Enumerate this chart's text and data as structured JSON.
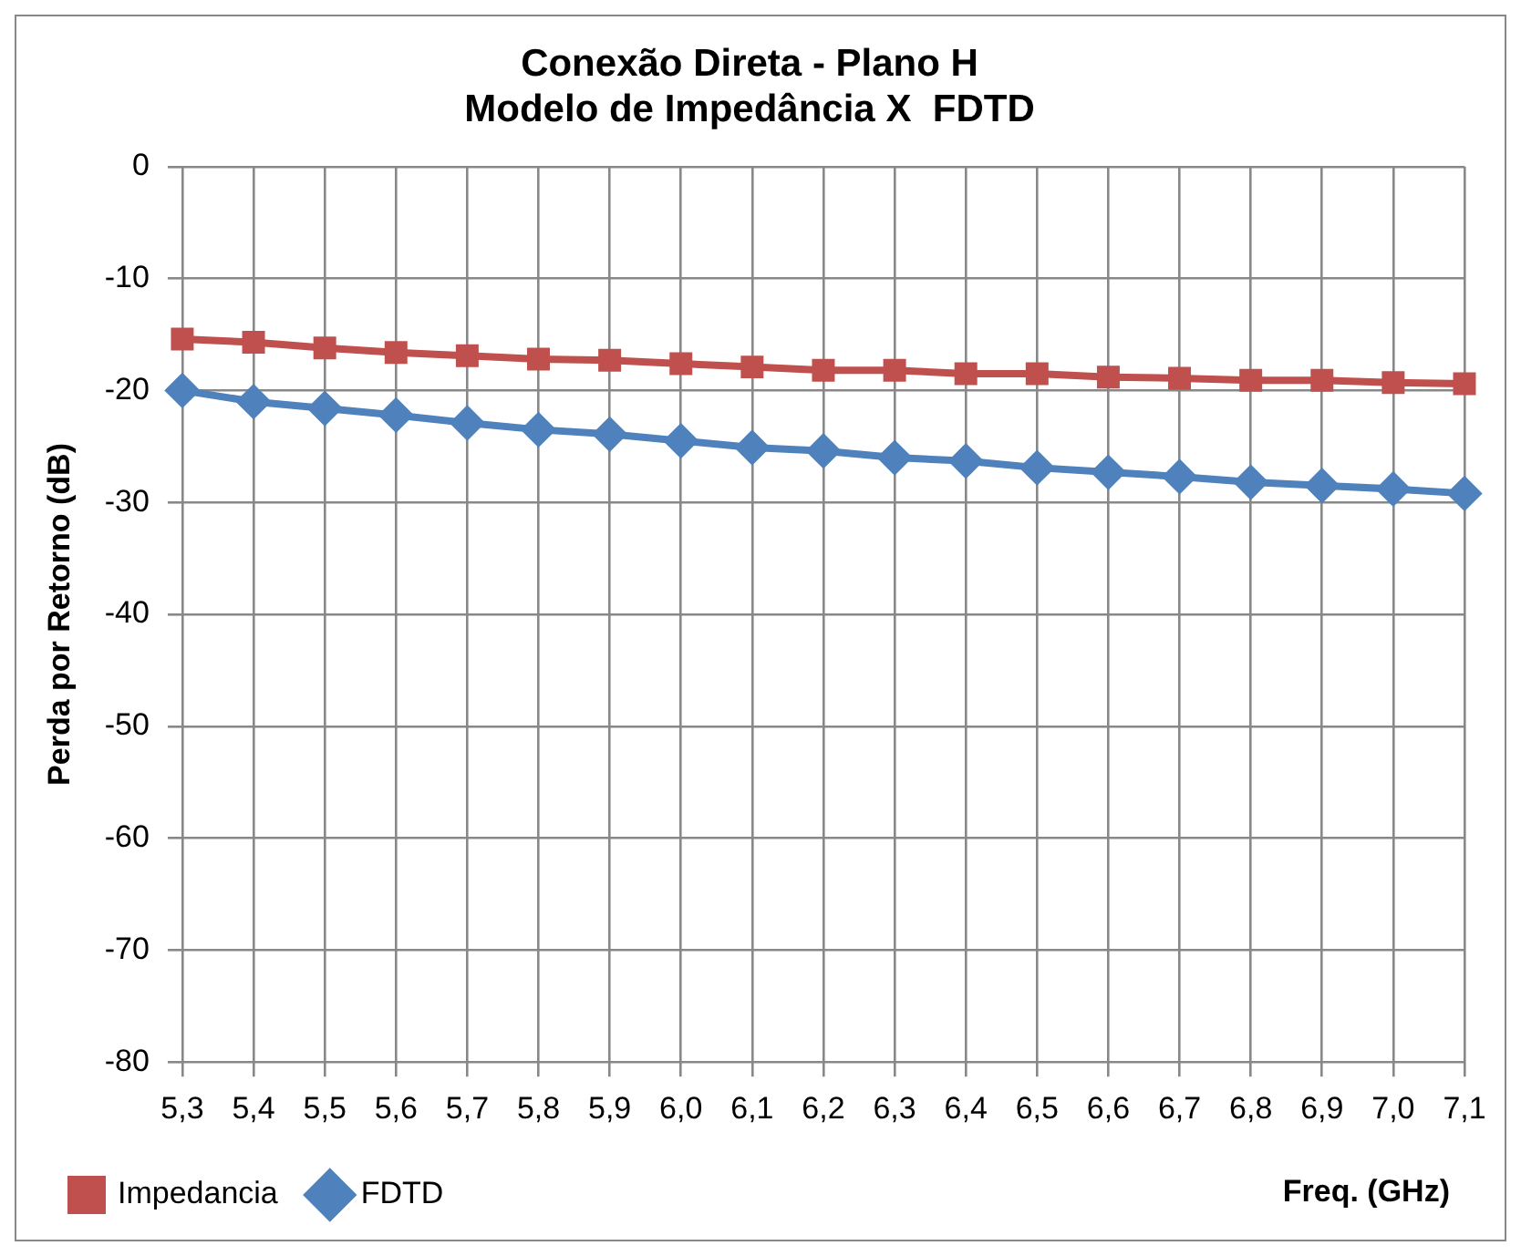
{
  "chart_data": {
    "type": "line",
    "title": "Conexão Direta - Plano H\nModelo de Impedância X  FDTD",
    "xlabel": "Freq. (GHz)",
    "ylabel": "Perda por Retorno (dB)",
    "categories": [
      "5,3",
      "5,4",
      "5,5",
      "5,6",
      "5,7",
      "5,8",
      "5,9",
      "6,0",
      "6,1",
      "6,2",
      "6,3",
      "6,4",
      "6,5",
      "6,6",
      "6,7",
      "6,8",
      "6,9",
      "7,0",
      "7,1"
    ],
    "series": [
      {
        "name": "Impedancia",
        "color": "#c0504d",
        "marker": "square",
        "values": [
          -15.4,
          -15.7,
          -16.2,
          -16.6,
          -16.9,
          -17.2,
          -17.3,
          -17.6,
          -17.9,
          -18.2,
          -18.2,
          -18.5,
          -18.5,
          -18.8,
          -18.9,
          -19.1,
          -19.1,
          -19.3,
          -19.4
        ]
      },
      {
        "name": "FDTD",
        "color": "#4f81bd",
        "marker": "diamond",
        "values": [
          -20.0,
          -21.0,
          -21.6,
          -22.2,
          -22.9,
          -23.5,
          -23.9,
          -24.5,
          -25.1,
          -25.4,
          -26.0,
          -26.3,
          -26.9,
          -27.3,
          -27.7,
          -28.2,
          -28.5,
          -28.8,
          -29.2
        ]
      }
    ],
    "ylim": [
      -80,
      0
    ],
    "yticks": [
      0,
      -10,
      -20,
      -30,
      -40,
      -50,
      -60,
      -70,
      -80
    ],
    "grid": true,
    "legend": "bottom"
  }
}
